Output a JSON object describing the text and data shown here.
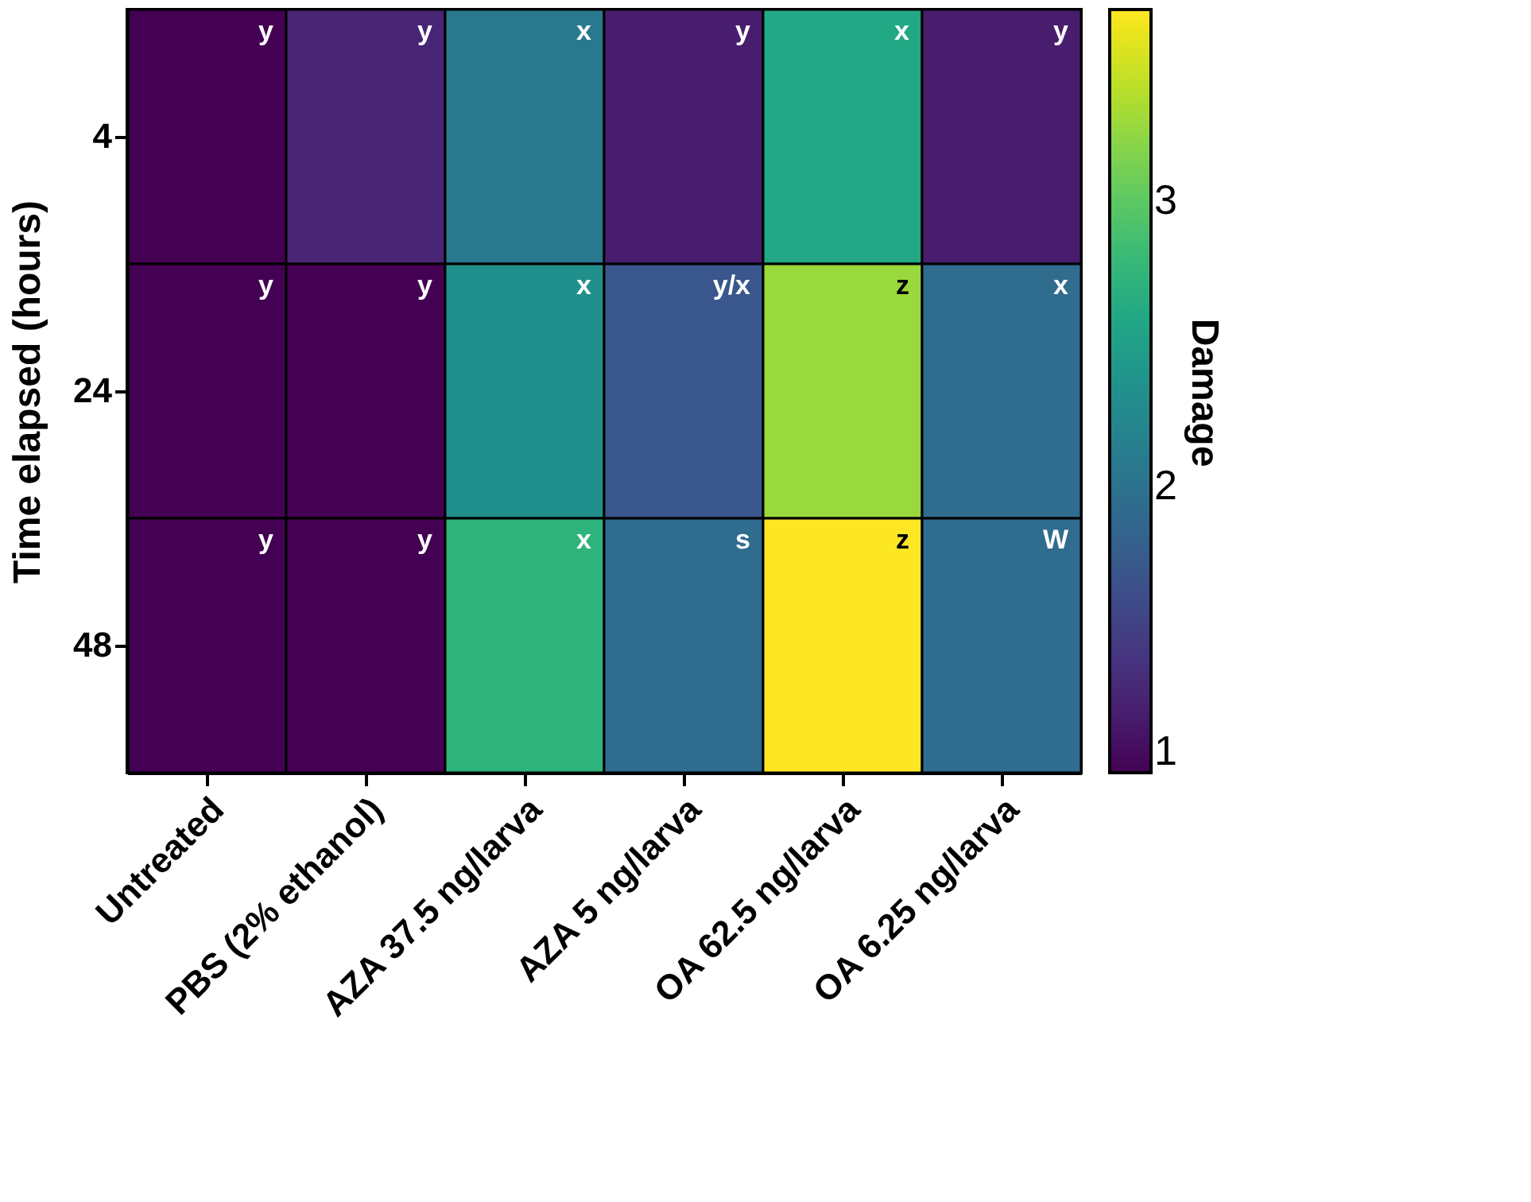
{
  "chart_data": {
    "type": "heatmap",
    "ylabel": "Time elapsed (hours)",
    "clabel": "Damage",
    "categories": [
      "Untreated",
      "PBS (2% ethanol)",
      "AZA 37.5 ng/larva",
      "AZA 5 ng/larva",
      "OA 62.5 ng/larva",
      "OA 6.25 ng/larva"
    ],
    "y_categories": [
      "4",
      "24",
      "48"
    ],
    "cells": [
      [
        1.0,
        1.27,
        2.07,
        1.2,
        2.6,
        1.2
      ],
      [
        1.0,
        1.0,
        2.33,
        1.72,
        3.27,
        1.93
      ],
      [
        1.0,
        1.0,
        2.73,
        1.93,
        3.67,
        1.93
      ]
    ],
    "cell_labels": [
      [
        "y",
        "y",
        "x",
        "y",
        "x",
        "y"
      ],
      [
        "y",
        "y",
        "x",
        "y/x",
        "z",
        "x"
      ],
      [
        "y",
        "y",
        "x",
        "s",
        "z",
        "W"
      ]
    ],
    "clim": [
      1,
      3.67
    ],
    "cticks": [
      1,
      2,
      3
    ]
  }
}
